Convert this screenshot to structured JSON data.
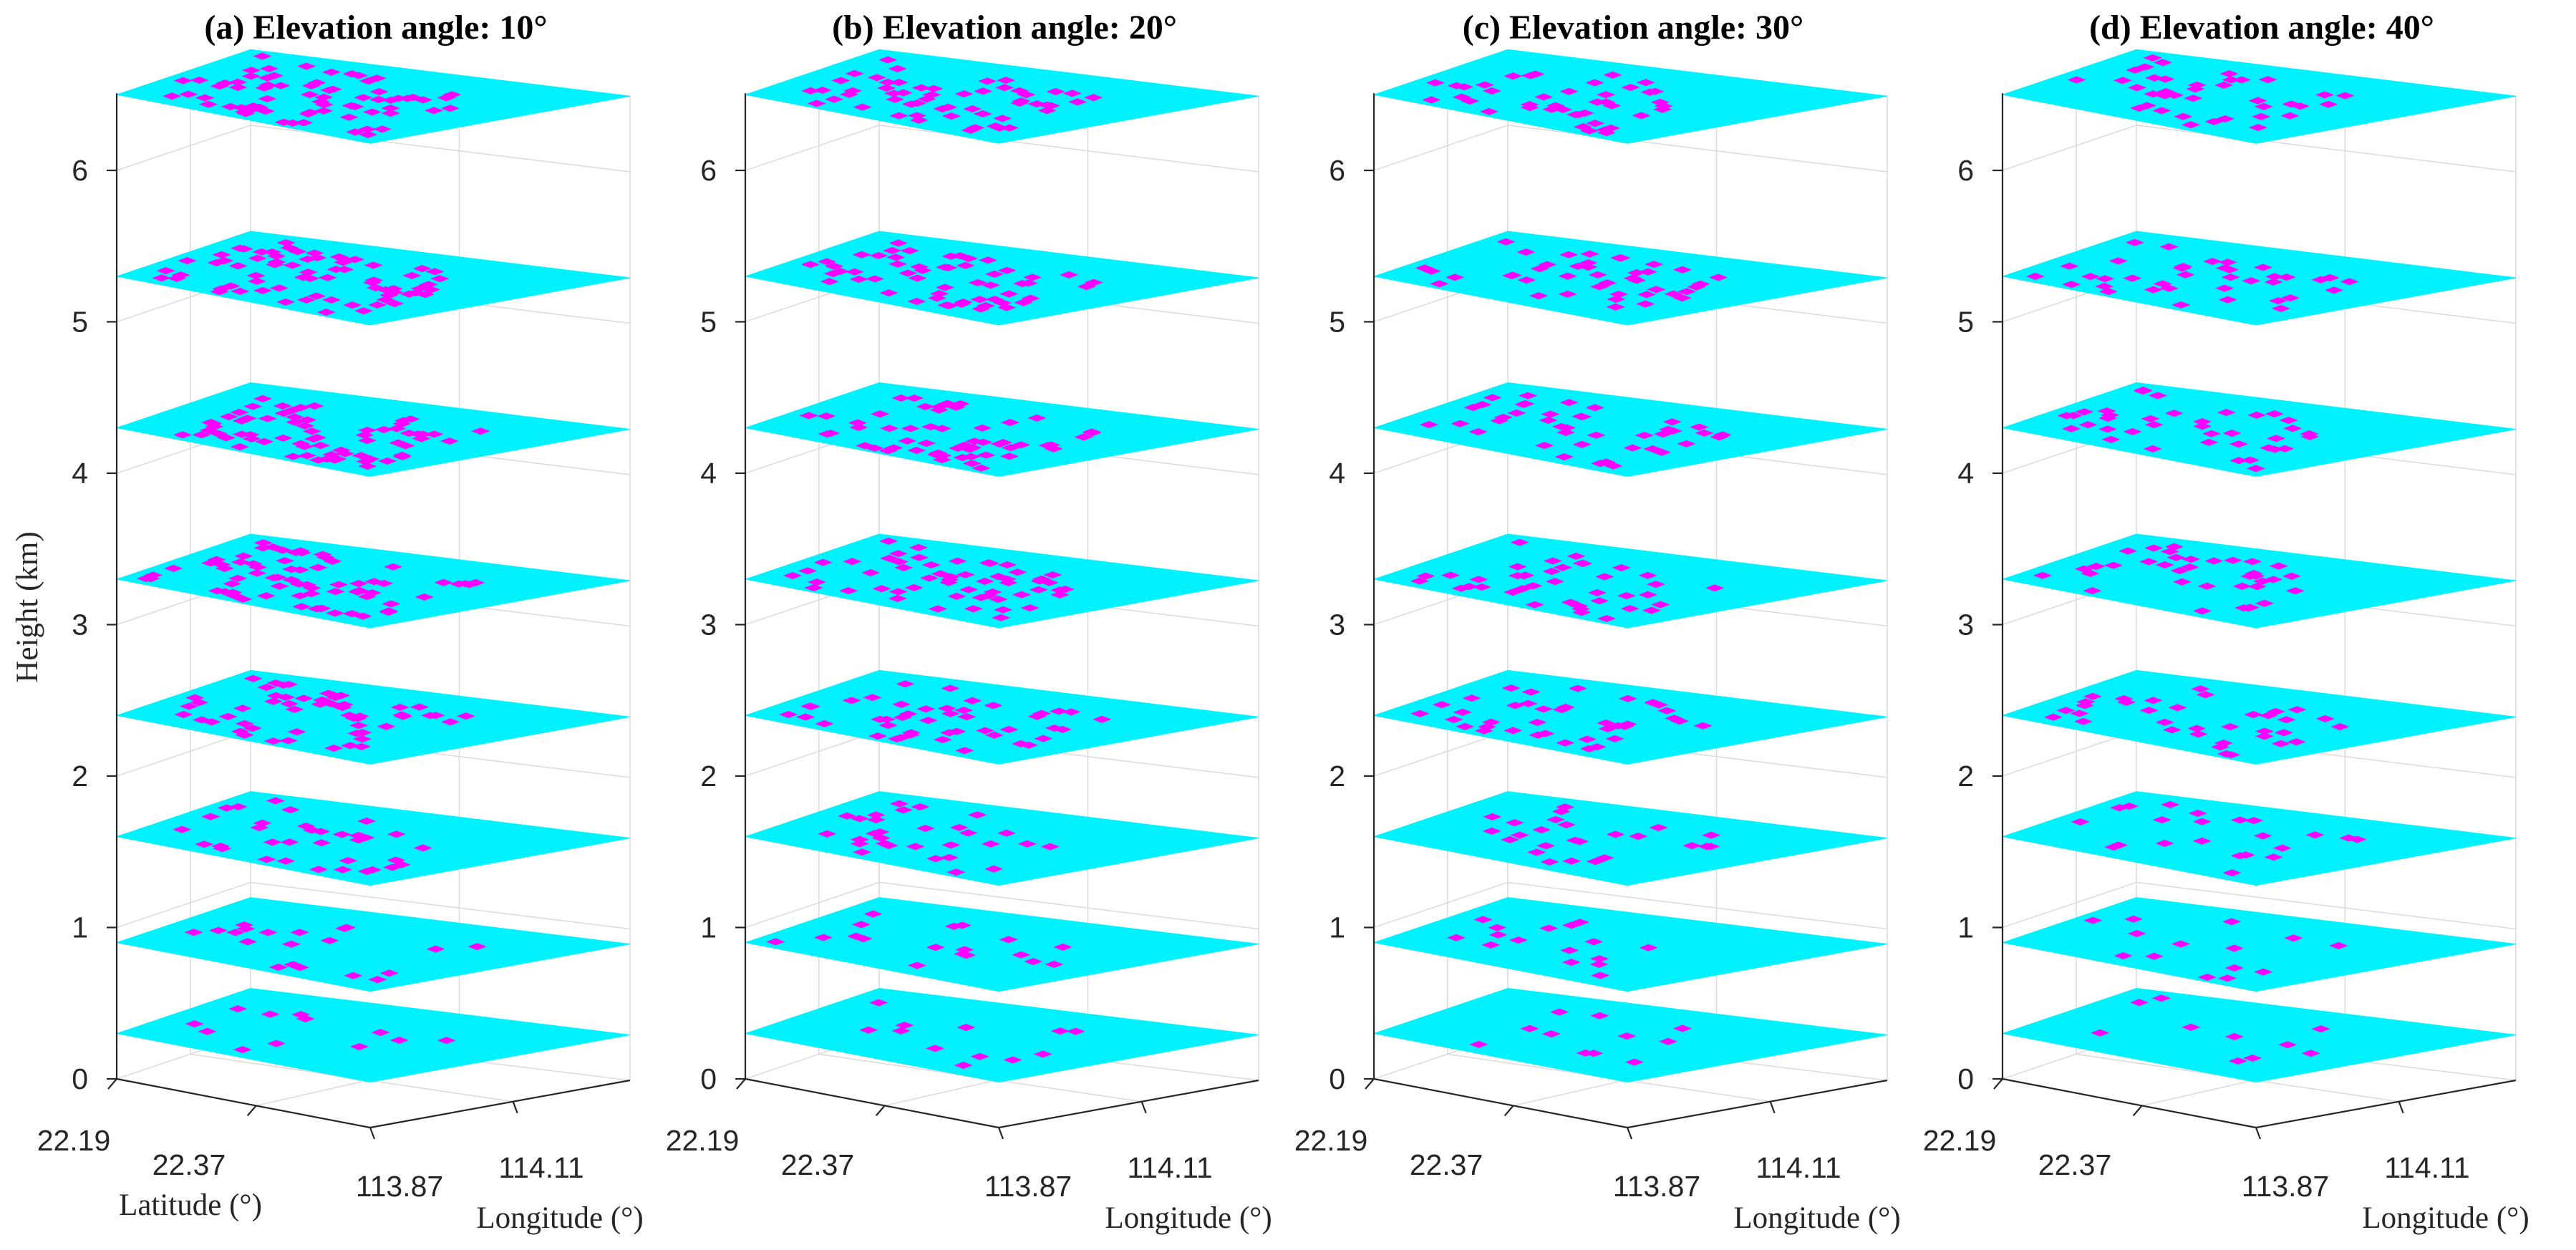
{
  "chart_data": {
    "type": "3d-layered-scatter",
    "colors": {
      "plane": "#00f2ff",
      "point": "#ff00ff",
      "axis": "#262626",
      "grid": "#dcdcdc"
    },
    "zlabel": "Height (km)",
    "ylabel": "Latitude (°)",
    "xlabel": "Longitude (°)",
    "z_ticks": [
      "0",
      "1",
      "2",
      "3",
      "4",
      "5",
      "6"
    ],
    "lat_ticks": [
      "22.19",
      "22.37"
    ],
    "lon_ticks": [
      "113.87",
      "114.11"
    ],
    "layer_heights_km": [
      0.3,
      0.9,
      1.6,
      2.4,
      3.3,
      4.3,
      5.3,
      6.5
    ],
    "panels": [
      {
        "title": "(a) Elevation angle: 10°",
        "elevation_deg": 10,
        "points_per_layer": [
          12,
          20,
          35,
          55,
          70,
          70,
          70,
          70
        ]
      },
      {
        "title": "(b) Elevation angle: 20°",
        "elevation_deg": 20,
        "points_per_layer": [
          12,
          18,
          30,
          45,
          55,
          55,
          55,
          55
        ]
      },
      {
        "title": "(c) Elevation angle: 30°",
        "elevation_deg": 30,
        "points_per_layer": [
          11,
          16,
          25,
          38,
          40,
          42,
          42,
          42
        ]
      },
      {
        "title": "(d) Elevation angle: 40°",
        "elevation_deg": 40,
        "points_per_layer": [
          10,
          14,
          22,
          35,
          36,
          38,
          38,
          38
        ]
      }
    ]
  }
}
